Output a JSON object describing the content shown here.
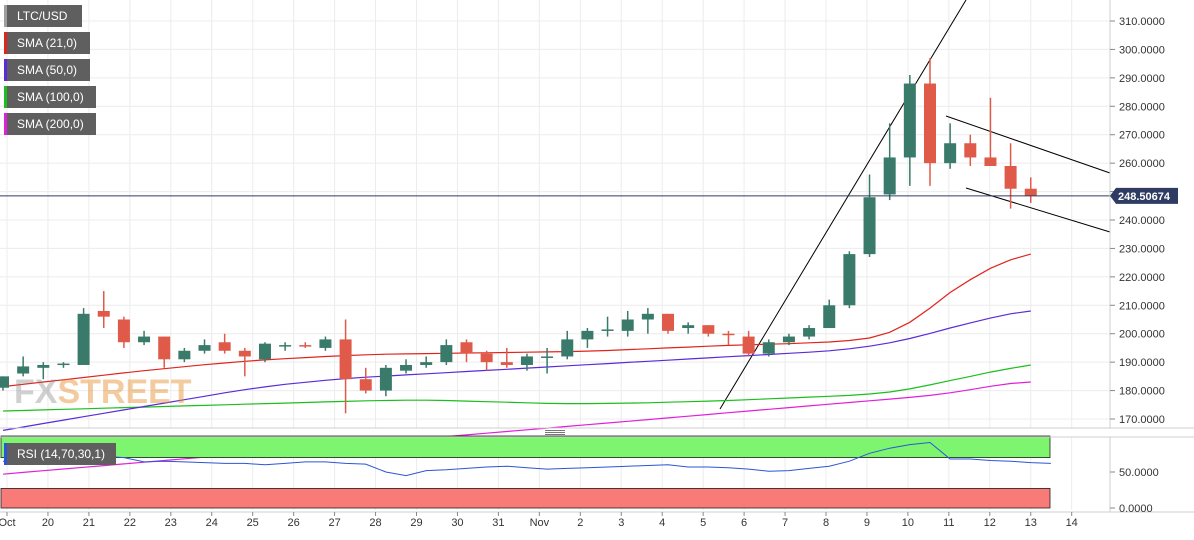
{
  "legend": [
    {
      "label": "LTC/USD",
      "color": "#9e9e9e"
    },
    {
      "label": "SMA (21,0)",
      "color": "#e0251c"
    },
    {
      "label": "SMA (50,0)",
      "color": "#5a2bd8"
    },
    {
      "label": "SMA (100,0)",
      "color": "#1bbf1b"
    },
    {
      "label": "SMA (200,0)",
      "color": "#e020d9"
    }
  ],
  "watermark": {
    "part1": "FX",
    "part2": "STREET"
  },
  "current_price": "248.50674",
  "rsi": {
    "label": "RSI (14,70,30,1)",
    "ticks": [
      "50.0000",
      "0.0000"
    ]
  },
  "colors": {
    "up": "#3a7a6a",
    "down": "#e05a4a",
    "rsi_line": "#2b55d6",
    "price_line": "#2e3b63"
  },
  "chart_data": {
    "type": "candlestick",
    "title": "LTC/USD",
    "x_tick_labels": [
      "Oct",
      "20",
      "21",
      "22",
      "23",
      "24",
      "25",
      "26",
      "27",
      "28",
      "29",
      "30",
      "31",
      "Nov",
      "2",
      "3",
      "4",
      "5",
      "6",
      "7",
      "8",
      "9",
      "10",
      "11",
      "12",
      "13",
      "14"
    ],
    "ylim": [
      165,
      315
    ],
    "y_tick_labels": [
      "170.0000",
      "180.0000",
      "190.0000",
      "200.0000",
      "210.0000",
      "220.0000",
      "230.0000",
      "240.0000",
      "250.0000",
      "260.0000",
      "270.0000",
      "280.0000",
      "290.0000",
      "300.0000",
      "310.0000"
    ],
    "candles": [
      {
        "o": 181,
        "h": 185,
        "l": 180,
        "c": 185
      },
      {
        "o": 186,
        "h": 192,
        "l": 185,
        "c": 188.5
      },
      {
        "o": 188,
        "h": 190,
        "l": 184,
        "c": 189
      },
      {
        "o": 189,
        "h": 190,
        "l": 188,
        "c": 189.5
      },
      {
        "o": 189,
        "h": 209,
        "l": 189,
        "c": 207
      },
      {
        "o": 208,
        "h": 215,
        "l": 202,
        "c": 206
      },
      {
        "o": 205,
        "h": 206,
        "l": 195,
        "c": 197
      },
      {
        "o": 197,
        "h": 201,
        "l": 196,
        "c": 199
      },
      {
        "o": 199,
        "h": 199,
        "l": 188,
        "c": 191
      },
      {
        "o": 191,
        "h": 195,
        "l": 190,
        "c": 194
      },
      {
        "o": 194,
        "h": 198,
        "l": 193,
        "c": 196
      },
      {
        "o": 197,
        "h": 200,
        "l": 193,
        "c": 194
      },
      {
        "o": 194,
        "h": 195,
        "l": 185,
        "c": 192
      },
      {
        "o": 191,
        "h": 197,
        "l": 190,
        "c": 196.5
      },
      {
        "o": 196,
        "h": 197,
        "l": 194,
        "c": 196
      },
      {
        "o": 196,
        "h": 197,
        "l": 195,
        "c": 195.5
      },
      {
        "o": 195,
        "h": 199,
        "l": 194,
        "c": 198
      },
      {
        "o": 198,
        "h": 205,
        "l": 172,
        "c": 184
      },
      {
        "o": 184,
        "h": 188,
        "l": 179,
        "c": 180
      },
      {
        "o": 180,
        "h": 189,
        "l": 178,
        "c": 188
      },
      {
        "o": 187,
        "h": 191,
        "l": 186,
        "c": 189
      },
      {
        "o": 189,
        "h": 192,
        "l": 188,
        "c": 190
      },
      {
        "o": 190,
        "h": 198,
        "l": 189,
        "c": 196
      },
      {
        "o": 197,
        "h": 198,
        "l": 190,
        "c": 193
      },
      {
        "o": 193,
        "h": 194,
        "l": 187,
        "c": 190
      },
      {
        "o": 190,
        "h": 195,
        "l": 188,
        "c": 189
      },
      {
        "o": 189,
        "h": 193,
        "l": 187,
        "c": 192
      },
      {
        "o": 192,
        "h": 195,
        "l": 186,
        "c": 192
      },
      {
        "o": 192,
        "h": 201,
        "l": 191,
        "c": 198
      },
      {
        "o": 198,
        "h": 202,
        "l": 195,
        "c": 201
      },
      {
        "o": 201,
        "h": 206,
        "l": 199,
        "c": 201.5
      },
      {
        "o": 201,
        "h": 208,
        "l": 199,
        "c": 205
      },
      {
        "o": 205,
        "h": 209,
        "l": 200,
        "c": 207
      },
      {
        "o": 207,
        "h": 207,
        "l": 200,
        "c": 201
      },
      {
        "o": 202,
        "h": 204,
        "l": 200,
        "c": 203
      },
      {
        "o": 203,
        "h": 203,
        "l": 199,
        "c": 200
      },
      {
        "o": 200,
        "h": 201,
        "l": 196,
        "c": 199.5
      },
      {
        "o": 199,
        "h": 201,
        "l": 192,
        "c": 193
      },
      {
        "o": 193,
        "h": 198,
        "l": 192,
        "c": 197
      },
      {
        "o": 197,
        "h": 200,
        "l": 196,
        "c": 199
      },
      {
        "o": 199,
        "h": 203,
        "l": 198,
        "c": 202
      },
      {
        "o": 202,
        "h": 212,
        "l": 202,
        "c": 210
      },
      {
        "o": 210,
        "h": 229,
        "l": 209,
        "c": 228
      },
      {
        "o": 228,
        "h": 256,
        "l": 227,
        "c": 248
      },
      {
        "o": 249,
        "h": 274,
        "l": 247,
        "c": 262
      },
      {
        "o": 262,
        "h": 291,
        "l": 252,
        "c": 288
      },
      {
        "o": 288,
        "h": 297,
        "l": 252,
        "c": 260
      },
      {
        "o": 260,
        "h": 274,
        "l": 258,
        "c": 267
      },
      {
        "o": 267,
        "h": 270,
        "l": 259,
        "c": 262
      },
      {
        "o": 262,
        "h": 283,
        "l": 259,
        "c": 259
      },
      {
        "o": 259,
        "h": 267,
        "l": 244,
        "c": 251
      },
      {
        "o": 251,
        "h": 255,
        "l": 246,
        "c": 248.5
      }
    ],
    "sma_21": [
      183,
      183.8,
      184.6,
      185.4,
      186.2,
      187,
      187.7,
      188.4,
      189.1,
      189.7,
      190.3,
      190.8,
      191.2,
      191.6,
      192,
      192.3,
      192.6,
      192.8,
      192.9,
      193,
      193.1,
      193.2,
      193.3,
      193.4,
      193.5,
      193.6,
      193.7,
      193.9,
      194.1,
      194.4,
      194.7,
      195,
      195.3,
      195.6,
      195.9,
      196.1,
      196.3,
      196.5,
      196.8,
      197.1,
      197.6,
      198.5,
      200.5,
      204,
      209,
      214.5,
      219,
      223,
      226,
      228
    ],
    "sma_50": [
      172,
      173.2,
      174.4,
      175.6,
      176.8,
      178,
      179.2,
      180.3,
      181.3,
      182.2,
      182.9,
      183.6,
      184.2,
      184.7,
      185.1,
      185.5,
      185.9,
      186.3,
      186.7,
      187.1,
      187.5,
      187.9,
      188.3,
      188.7,
      189.1,
      189.5,
      189.9,
      190.3,
      190.7,
      191.1,
      191.5,
      191.9,
      192.3,
      192.7,
      193.1,
      193.5,
      194,
      194.7,
      195.6,
      196.8,
      198.3,
      200.1,
      202,
      203.8,
      205.5,
      207,
      208
    ],
    "sma_100": [
      176,
      176.2,
      176.4,
      176.5,
      176.6,
      176.6,
      176.5,
      176.3,
      176.1,
      175.9,
      175.7,
      175.5,
      175.4,
      175.4,
      175.5,
      175.6,
      175.7,
      175.9,
      176.1,
      176.3,
      176.5,
      176.8,
      177.1,
      177.4,
      177.7,
      178,
      178.3,
      178.8,
      179.5,
      180.6,
      182,
      183.5,
      185,
      186.5,
      187.8,
      189
    ],
    "sma_200": [
      165,
      165.6,
      166.2,
      166.8,
      167.4,
      168,
      168.6,
      169.2,
      169.8,
      170.4,
      171,
      171.6,
      172.2,
      172.8,
      173.4,
      174,
      174.6,
      175.2,
      175.8,
      176.4,
      177,
      177.6,
      178.3,
      179.2,
      180.3,
      181.5,
      182.5,
      183
    ],
    "rsi_values": [
      65,
      66,
      67,
      67,
      70,
      72,
      70,
      64,
      65,
      64,
      63,
      62,
      62,
      60,
      62,
      64,
      64,
      62,
      61,
      50,
      45,
      52,
      53,
      55,
      57,
      58,
      56,
      54,
      55,
      56,
      57,
      58,
      59,
      60,
      57,
      57,
      56,
      54,
      51,
      52,
      55,
      58,
      65,
      76,
      83,
      88,
      91,
      68,
      68,
      66,
      65,
      63,
      62
    ]
  }
}
